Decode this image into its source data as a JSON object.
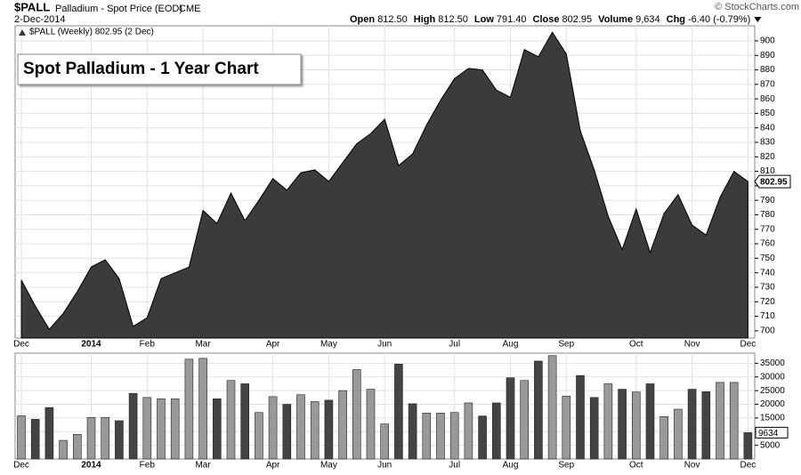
{
  "header": {
    "symbol": "$PALL",
    "name": "Palladium - Spot Price (EOD)",
    "exchange": "CME",
    "date": "2-Dec-2014",
    "quote": [
      {
        "label": "Open",
        "value": "812.50"
      },
      {
        "label": "High",
        "value": "812.50"
      },
      {
        "label": "Low",
        "value": "791.40"
      },
      {
        "label": "Close",
        "value": "802.95"
      },
      {
        "label": "Volume",
        "value": "9,634"
      },
      {
        "label": "Chg",
        "value": "-6.40 (-0.79%)"
      }
    ],
    "credit": "© StockCharts.com"
  },
  "chart_data": [
    {
      "type": "area",
      "title": "Spot Palladium - 1 Year Chart",
      "legend": "$PALL (Weekly) 802.95 (2 Dec)",
      "categories": [
        "Dec",
        null,
        null,
        null,
        null,
        "2014",
        null,
        null,
        null,
        "Feb",
        null,
        null,
        null,
        "Mar",
        null,
        null,
        null,
        null,
        "Apr",
        null,
        null,
        null,
        "May",
        null,
        null,
        null,
        "Jun",
        null,
        null,
        null,
        null,
        "Jul",
        null,
        null,
        null,
        "Aug",
        null,
        null,
        null,
        "Sep",
        null,
        null,
        null,
        null,
        "Oct",
        null,
        null,
        null,
        "Nov",
        null,
        null,
        null,
        "Dec"
      ],
      "series": [
        {
          "name": "$PALL",
          "color": "#3b3b3b",
          "values": [
            735,
            717,
            701,
            712,
            727,
            744,
            749,
            736,
            703,
            709,
            736,
            740,
            744,
            783,
            774,
            795,
            776,
            790,
            805,
            797,
            809,
            811,
            803,
            816,
            829,
            836,
            846,
            814,
            822,
            842,
            859,
            874,
            881,
            880,
            866,
            861,
            894,
            889,
            906,
            891,
            838,
            811,
            779,
            756,
            784,
            754,
            781,
            794,
            773,
            766,
            792,
            810,
            802.95
          ]
        }
      ],
      "ylim": [
        695,
        910.4
      ],
      "yticks": [
        700,
        710,
        720,
        730,
        740,
        750,
        760,
        770,
        780,
        790,
        800,
        810,
        820,
        830,
        840,
        850,
        860,
        870,
        880,
        890,
        900
      ],
      "grid": true
    },
    {
      "type": "bar",
      "categories": [
        "Dec",
        null,
        null,
        null,
        null,
        "2014",
        null,
        null,
        null,
        "Feb",
        null,
        null,
        null,
        "Mar",
        null,
        null,
        null,
        null,
        "Apr",
        null,
        null,
        null,
        "May",
        null,
        null,
        null,
        "Jun",
        null,
        null,
        null,
        null,
        "Jul",
        null,
        null,
        null,
        "Aug",
        null,
        null,
        null,
        "Sep",
        null,
        null,
        null,
        null,
        "Oct",
        null,
        null,
        null,
        "Nov",
        null,
        null,
        null,
        "Dec"
      ],
      "series": [
        {
          "name": "Volume",
          "values": [
            15800,
            14500,
            18800,
            6800,
            9000,
            15200,
            15200,
            14000,
            24000,
            22500,
            22000,
            22000,
            36500,
            36800,
            22000,
            28700,
            27500,
            17000,
            22800,
            20000,
            23500,
            21000,
            21500,
            25000,
            32700,
            25500,
            12800,
            34700,
            20200,
            16800,
            16800,
            17000,
            20500,
            15700,
            20500,
            29700,
            28700,
            35800,
            37800,
            23000,
            30500,
            22500,
            27500,
            25500,
            24500,
            27500,
            15500,
            18200,
            25500,
            24600,
            28000,
            28000,
            9634
          ],
          "colors": [
            "#999",
            "#444",
            "#444",
            "#999",
            "#999",
            "#999",
            "#999",
            "#444",
            "#444",
            "#999",
            "#999",
            "#999",
            "#999",
            "#999",
            "#444",
            "#999",
            "#444",
            "#999",
            "#999",
            "#444",
            "#999",
            "#999",
            "#444",
            "#999",
            "#999",
            "#999",
            "#999",
            "#444",
            "#444",
            "#999",
            "#999",
            "#999",
            "#999",
            "#444",
            "#444",
            "#444",
            "#999",
            "#444",
            "#999",
            "#999",
            "#444",
            "#444",
            "#999",
            "#444",
            "#999",
            "#444",
            "#999",
            "#999",
            "#444",
            "#444",
            "#999",
            "#999",
            "#444"
          ]
        }
      ],
      "ylim": [
        0,
        38700
      ],
      "yticks": [
        5000,
        10000,
        15000,
        20000,
        25000,
        30000,
        35000
      ],
      "grid": true
    }
  ]
}
